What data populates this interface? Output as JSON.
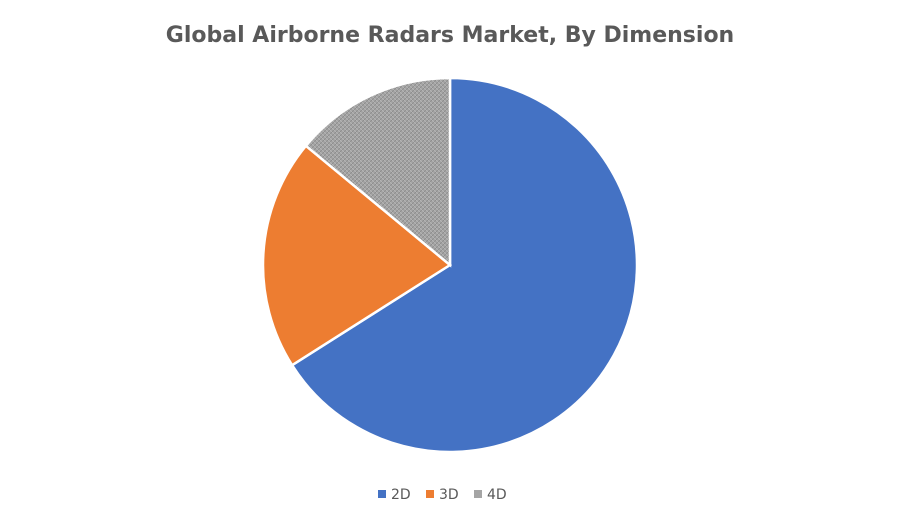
{
  "chart_data": {
    "type": "pie",
    "title": "Global Airborne Radars Market, By Dimension",
    "categories": [
      "2D",
      "3D",
      "4D"
    ],
    "values": [
      66,
      20,
      14
    ],
    "colors": [
      "#4472c4",
      "#ed7d31",
      "#a5a5a5"
    ],
    "legend": "bottom"
  }
}
